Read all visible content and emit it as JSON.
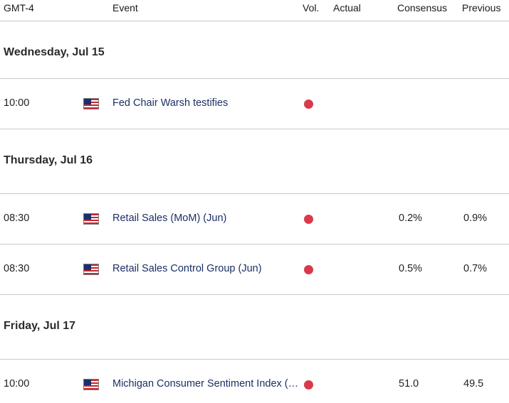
{
  "header": {
    "timezone": "GMT-4",
    "event": "Event",
    "volatility": "Vol.",
    "actual": "Actual",
    "consensus": "Consensus",
    "previous": "Previous"
  },
  "days": [
    {
      "label": "Wednesday, Jul 15",
      "events": [
        {
          "time": "10:00",
          "country_flag": "us-flag-icon",
          "event": "Fed Chair Warsh testifies",
          "volatility_color": "#d93a4a",
          "actual": "",
          "consensus": "",
          "previous": ""
        }
      ]
    },
    {
      "label": "Thursday, Jul 16",
      "events": [
        {
          "time": "08:30",
          "country_flag": "us-flag-icon",
          "event": "Retail Sales (MoM) (Jun)",
          "volatility_color": "#d93a4a",
          "actual": "",
          "consensus": "0.2%",
          "previous": "0.9%"
        },
        {
          "time": "08:30",
          "country_flag": "us-flag-icon",
          "event": "Retail Sales Control Group (Jun)",
          "volatility_color": "#d93a4a",
          "actual": "",
          "consensus": "0.5%",
          "previous": "0.7%"
        }
      ]
    },
    {
      "label": "Friday, Jul 17",
      "events": [
        {
          "time": "10:00",
          "country_flag": "us-flag-icon",
          "event": "Michigan Consumer Sentiment Index (Jul)",
          "volatility_color": "#d93a4a",
          "actual": "",
          "consensus": "51.0",
          "previous": "49.5"
        }
      ]
    }
  ]
}
